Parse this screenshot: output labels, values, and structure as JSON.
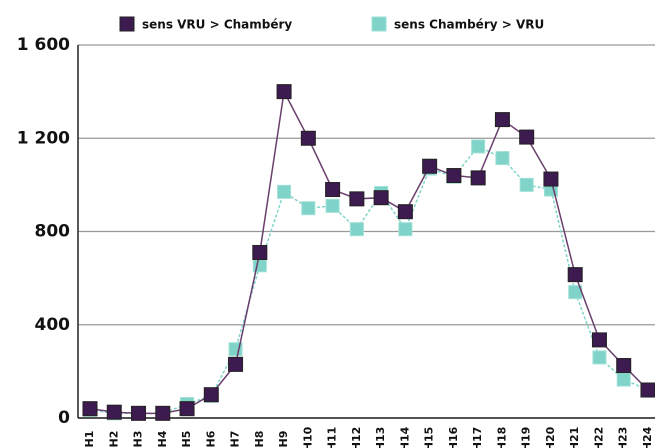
{
  "chart_data": {
    "type": "line",
    "categories": [
      "H1",
      "H2",
      "H3",
      "H4",
      "H5",
      "H6",
      "H7",
      "H8",
      "H9",
      "H10",
      "H11",
      "H12",
      "H13",
      "H14",
      "H15",
      "H16",
      "H17",
      "H18",
      "H19",
      "H20",
      "H21",
      "H22",
      "H23",
      "H24"
    ],
    "series": [
      {
        "name": "sens VRU > Chambéry",
        "color": "#3d1a4f",
        "values": [
          40,
          25,
          20,
          20,
          40,
          100,
          230,
          710,
          1400,
          1200,
          980,
          940,
          945,
          885,
          1080,
          1040,
          1030,
          1280,
          1205,
          1025,
          615,
          335,
          225,
          120
        ]
      },
      {
        "name": "sens Chambéry > VRU",
        "color": "#7fd3c8",
        "values": [
          35,
          20,
          20,
          20,
          60,
          95,
          295,
          655,
          970,
          900,
          910,
          810,
          965,
          810,
          1070,
          1035,
          1165,
          1115,
          1000,
          980,
          540,
          260,
          165,
          120
        ]
      }
    ],
    "ylim": [
      0,
      1600
    ],
    "yticks": [
      0,
      400,
      800,
      {
        "value": 1200,
        "label": "1 200"
      },
      {
        "value": 1600,
        "label": "1 600"
      }
    ],
    "grid": true,
    "legend": "top"
  }
}
